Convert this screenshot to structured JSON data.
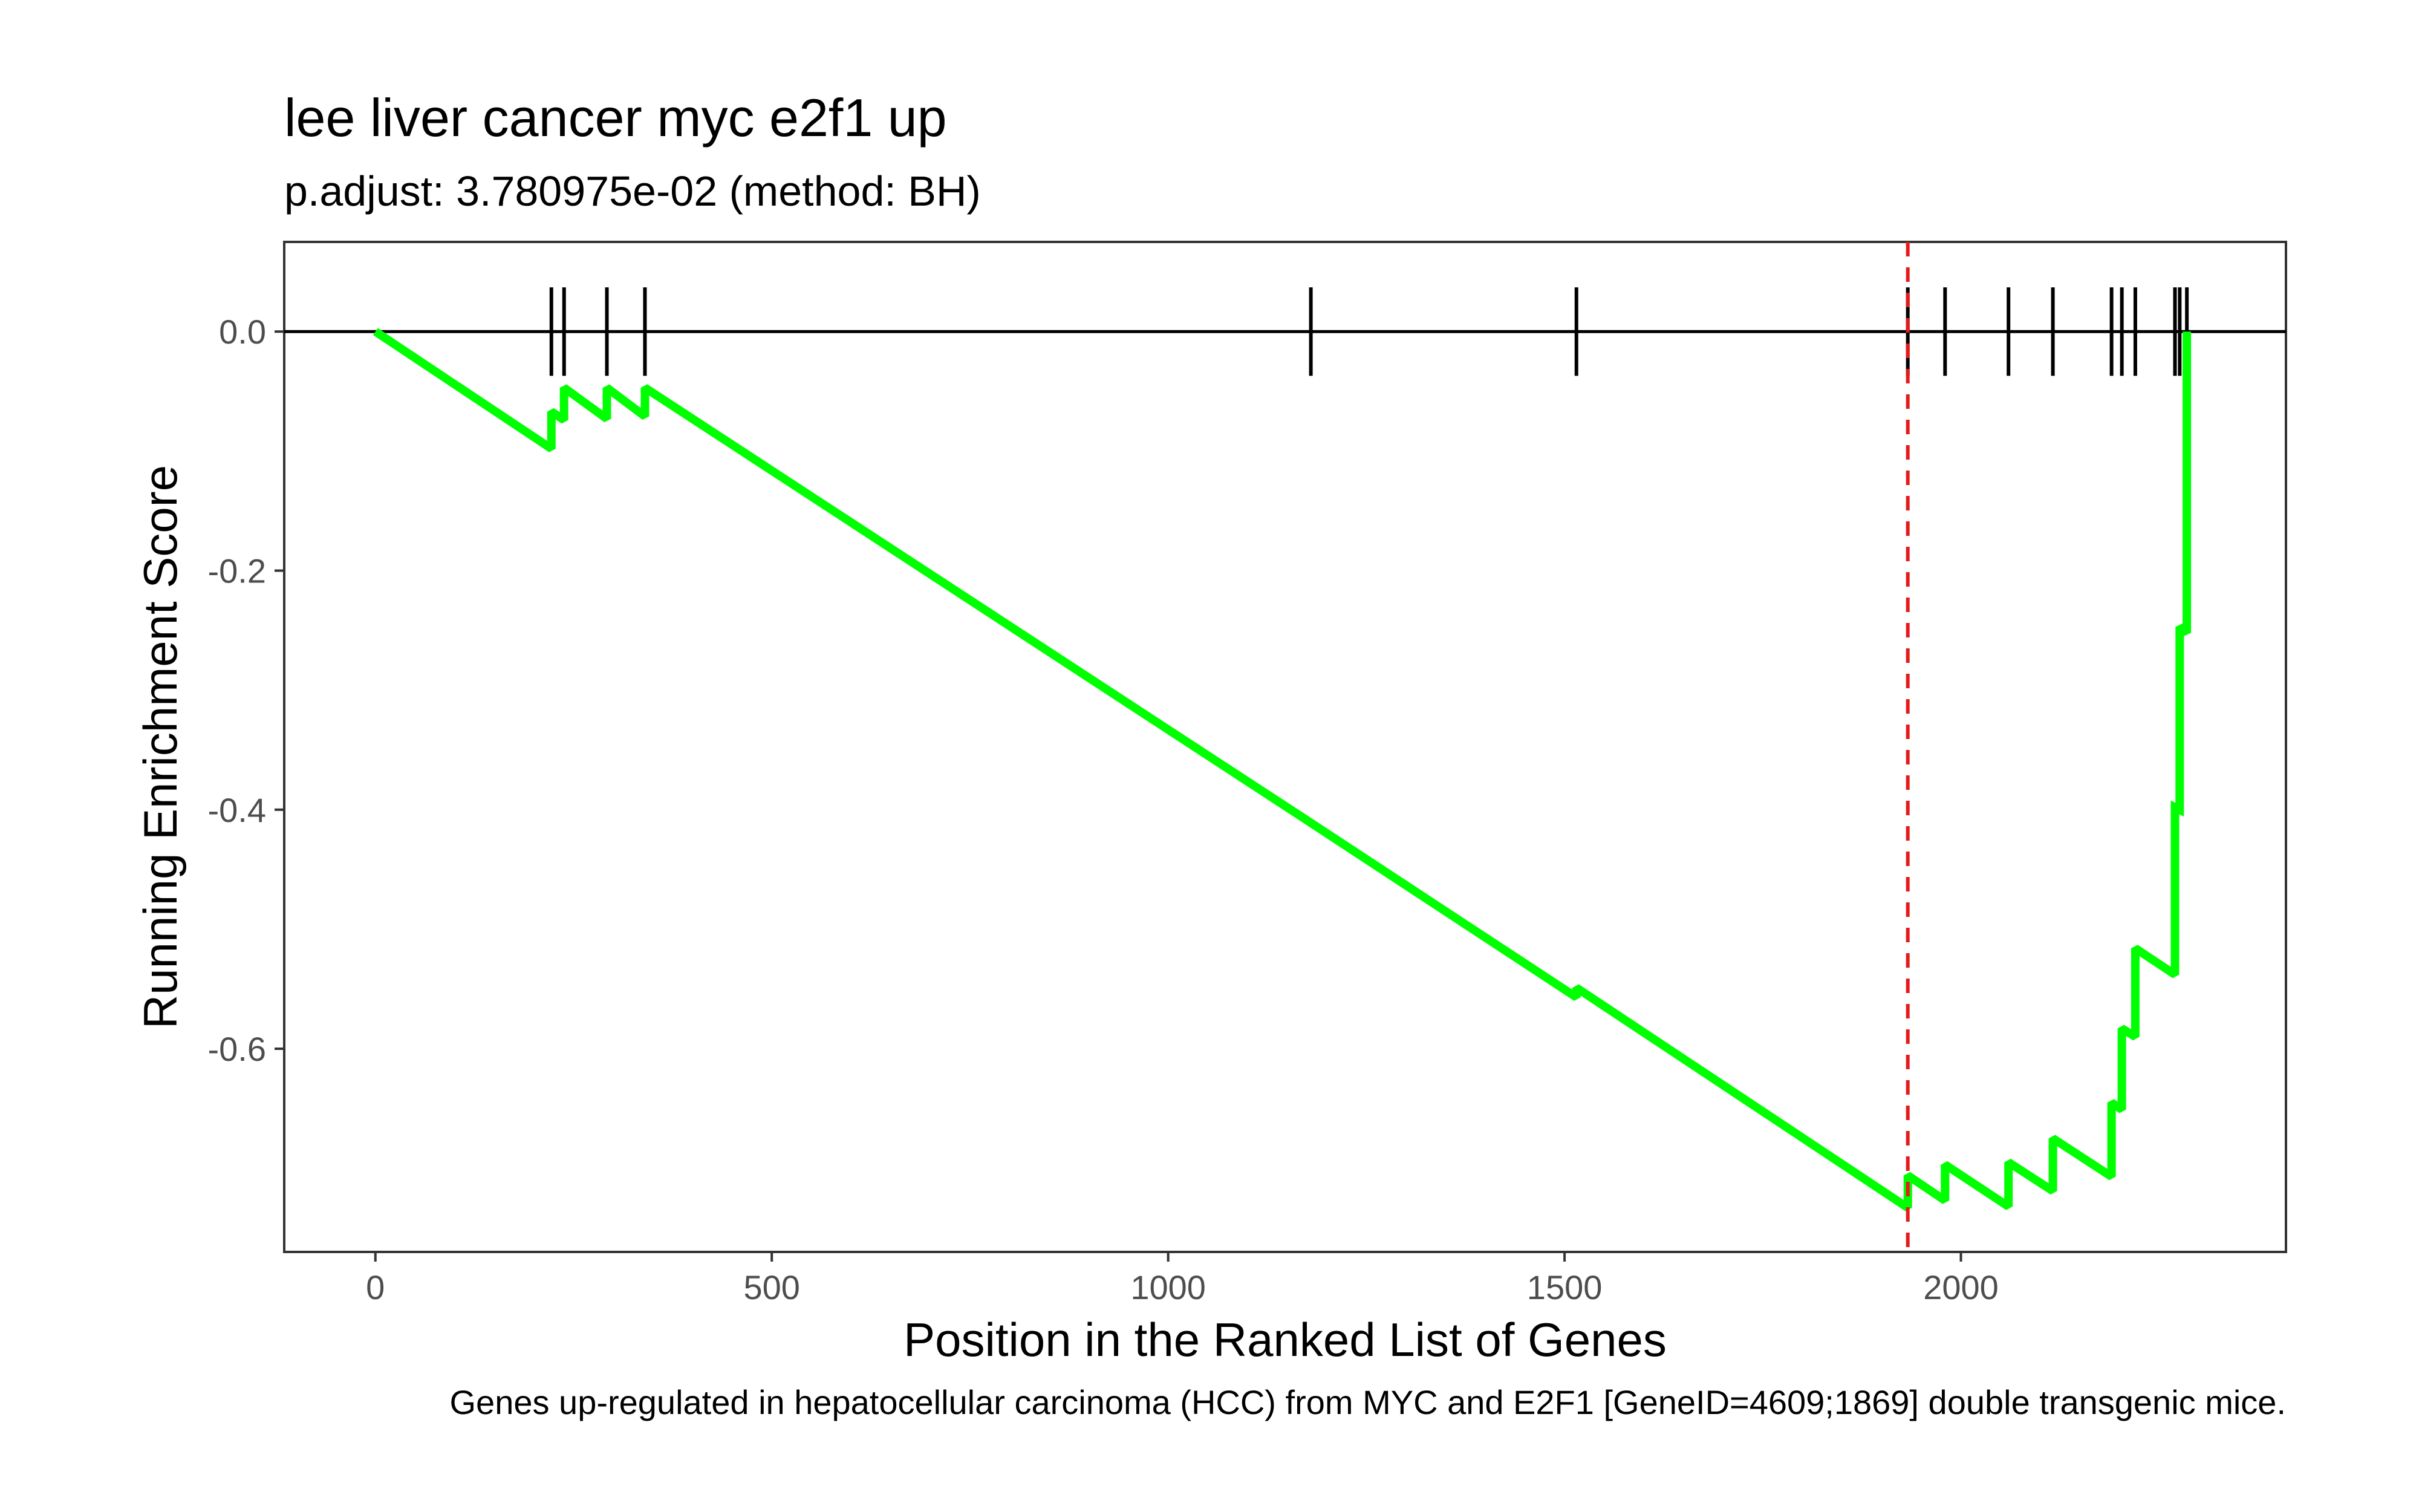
{
  "chart_data": {
    "type": "line",
    "title": "lee liver cancer myc e2f1 up",
    "subtitle": "p.adjust: 3.780975e-02 (method: BH)",
    "xlabel": "Position in the Ranked List of Genes",
    "ylabel": "Running Enrichment Score",
    "caption": "Genes up-regulated in hepatocellular carcinoma (HCC) from MYC and E2F1 [GeneID=4609;1869] double transgenic mice.",
    "xlim": [
      -115,
      2410
    ],
    "ylim": [
      -0.77,
      0.075
    ],
    "x_ticks": [
      0,
      500,
      1000,
      1500,
      2000
    ],
    "x_tick_labels": [
      "0",
      "500",
      "1000",
      "1500",
      "2000"
    ],
    "y_ticks": [
      0.0,
      -0.2,
      -0.4,
      -0.6
    ],
    "y_tick_labels": [
      "0.0",
      "-0.2",
      "-0.4",
      "-0.6"
    ],
    "grid": false,
    "zero_line": 0.0,
    "gene_hits": [
      222,
      238,
      292,
      340,
      1180,
      1515,
      1933,
      1980,
      2060,
      2116,
      2190,
      2203,
      2220,
      2270,
      2276,
      2285
    ],
    "peak_position": 1933,
    "series": [
      {
        "color": "#00ff00",
        "x": [
          0,
          222,
          222,
          238,
          238,
          292,
          292,
          340,
          340,
          1180,
          1180,
          1515,
          1515,
          1933,
          1933,
          1980,
          1980,
          2060,
          2060,
          2116,
          2116,
          2190,
          2190,
          2203,
          2203,
          2220,
          2220,
          2270,
          2270,
          2276,
          2276,
          2285,
          2285
        ],
        "y": [
          0.0,
          -0.098,
          -0.067,
          -0.074,
          -0.047,
          -0.073,
          -0.047,
          -0.071,
          -0.047,
          -0.411,
          -0.411,
          -0.557,
          -0.549,
          -0.733,
          -0.706,
          -0.727,
          -0.697,
          -0.732,
          -0.695,
          -0.719,
          -0.675,
          -0.707,
          -0.645,
          -0.651,
          -0.583,
          -0.59,
          -0.516,
          -0.538,
          -0.398,
          -0.4,
          -0.247,
          -0.252,
          0.0
        ]
      }
    ],
    "colors": {
      "line": "#00ff00",
      "peak_line": "#e41a1c",
      "axis": "#333333",
      "hits": "#000000"
    }
  }
}
